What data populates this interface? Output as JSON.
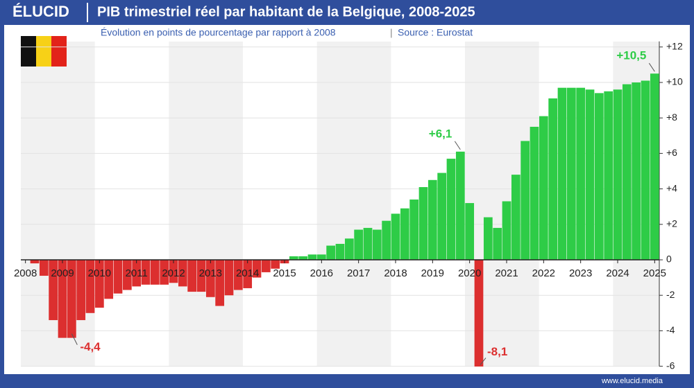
{
  "header": {
    "logo": "ÉLUCID",
    "source": "Source : Eurostat"
  },
  "footer": {
    "site": "www.elucid.media"
  },
  "chart_data": {
    "type": "bar",
    "title": "PIB trimestriel réel par habitant de la Belgique, 2008-2025",
    "subtitle": "Évolution en points de pourcentage par rapport à 2008",
    "categories": [
      "2008",
      null,
      null,
      null,
      "2009",
      null,
      null,
      null,
      "2010",
      null,
      null,
      null,
      "2011",
      null,
      null,
      null,
      "2012",
      null,
      null,
      null,
      "2013",
      null,
      null,
      null,
      "2014",
      null,
      null,
      null,
      "2015",
      null,
      null,
      null,
      "2016",
      null,
      null,
      null,
      "2017",
      null,
      null,
      null,
      "2018",
      null,
      null,
      null,
      "2019",
      null,
      null,
      null,
      "2020",
      null,
      null,
      null,
      "2021",
      null,
      null,
      null,
      "2022",
      null,
      null,
      null,
      "2023",
      null,
      null,
      null,
      "2024",
      null,
      null,
      null,
      "2025"
    ],
    "values": [
      0,
      -0.2,
      -0.9,
      -3.4,
      -4.4,
      -4.4,
      -3.4,
      -3.0,
      -2.7,
      -2.2,
      -1.9,
      -1.7,
      -1.5,
      -1.4,
      -1.4,
      -1.4,
      -1.3,
      -1.5,
      -1.8,
      -1.8,
      -2.1,
      -2.6,
      -2.0,
      -1.7,
      -1.6,
      -1.0,
      -0.7,
      -0.5,
      -0.2,
      0.2,
      0.2,
      0.3,
      0.3,
      0.8,
      0.9,
      1.2,
      1.7,
      1.8,
      1.7,
      2.2,
      2.6,
      2.9,
      3.4,
      4.1,
      4.5,
      4.9,
      5.7,
      6.1,
      3.2,
      -8.1,
      2.4,
      1.8,
      3.3,
      4.8,
      6.7,
      7.5,
      8.1,
      9.1,
      9.7,
      9.7,
      9.7,
      9.6,
      9.4,
      9.5,
      9.6,
      9.9,
      10.0,
      10.1,
      10.5
    ],
    "value_labels": [
      null,
      null,
      null,
      null,
      null,
      "-4,4",
      null,
      null,
      null,
      null,
      null,
      null,
      null,
      null,
      null,
      null,
      null,
      null,
      null,
      null,
      null,
      null,
      null,
      null,
      null,
      null,
      null,
      null,
      null,
      null,
      null,
      null,
      null,
      null,
      null,
      null,
      null,
      null,
      null,
      null,
      null,
      null,
      null,
      null,
      null,
      null,
      null,
      "+6,1",
      null,
      "-8,1",
      null,
      null,
      null,
      null,
      null,
      null,
      null,
      null,
      null,
      null,
      null,
      null,
      null,
      null,
      null,
      null,
      null,
      null,
      "+10,5"
    ],
    "positive_color": "#2ecc47",
    "negative_color": "#dc2f2f",
    "ylim": [
      -6,
      12
    ],
    "yticks": [
      {
        "value": 12,
        "label": "+12"
      },
      {
        "value": 10,
        "label": "+10"
      },
      {
        "value": 8,
        "label": "+8"
      },
      {
        "value": 6,
        "label": "+6"
      },
      {
        "value": 4,
        "label": "+4"
      },
      {
        "value": 2,
        "label": "+2"
      },
      0,
      -2,
      -4,
      -6
    ],
    "grid": true
  }
}
